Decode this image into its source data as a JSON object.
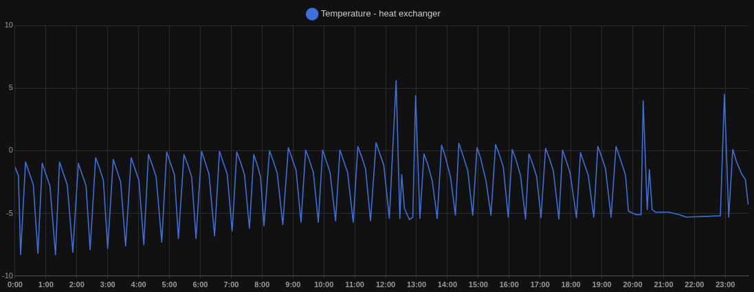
{
  "chart_data": {
    "type": "line",
    "legend": "top",
    "grid": true,
    "marker": "none",
    "line_style": "solid",
    "xlim": [
      0,
      23.75
    ],
    "ylim": [
      -10,
      10
    ],
    "yticks": [
      -10,
      -5,
      0,
      5,
      10
    ],
    "xticks": [
      {
        "value": 0,
        "label": "0:00"
      },
      {
        "value": 1,
        "label": "1:00"
      },
      {
        "value": 2,
        "label": "2:00"
      },
      {
        "value": 3,
        "label": "3:00"
      },
      {
        "value": 4,
        "label": "4:00"
      },
      {
        "value": 5,
        "label": "5:00"
      },
      {
        "value": 6,
        "label": "6:00"
      },
      {
        "value": 7,
        "label": "7:00"
      },
      {
        "value": 8,
        "label": "8:00"
      },
      {
        "value": 9,
        "label": "9:00"
      },
      {
        "value": 10,
        "label": "10:00"
      },
      {
        "value": 11,
        "label": "11:00"
      },
      {
        "value": 12,
        "label": "12:00"
      },
      {
        "value": 13,
        "label": "13:00"
      },
      {
        "value": 14,
        "label": "14:00"
      },
      {
        "value": 15,
        "label": "15:00"
      },
      {
        "value": 16,
        "label": "16:00"
      },
      {
        "value": 17,
        "label": "17:00"
      },
      {
        "value": 18,
        "label": "18:00"
      },
      {
        "value": 19,
        "label": "19:00"
      },
      {
        "value": 20,
        "label": "20:00"
      },
      {
        "value": 21,
        "label": "21:00"
      },
      {
        "value": 22,
        "label": "22:00"
      },
      {
        "value": 23,
        "label": "23:00"
      }
    ],
    "series": [
      {
        "name": "Temperature - heat exchanger",
        "color": "#3f6fd8",
        "x": [
          0.0,
          0.11,
          0.18,
          0.34,
          0.45,
          0.59,
          0.74,
          0.88,
          0.99,
          1.13,
          1.31,
          1.44,
          1.55,
          1.69,
          1.87,
          2.05,
          2.16,
          2.3,
          2.43,
          2.61,
          2.73,
          2.86,
          3.0,
          3.18,
          3.29,
          3.42,
          3.58,
          3.76,
          3.87,
          4.01,
          4.17,
          4.32,
          4.44,
          4.57,
          4.75,
          4.91,
          5.02,
          5.16,
          5.29,
          5.47,
          5.59,
          5.72,
          5.86,
          6.04,
          6.15,
          6.28,
          6.46,
          6.62,
          6.73,
          6.87,
          7.03,
          7.18,
          7.3,
          7.43,
          7.59,
          7.73,
          7.84,
          7.95,
          8.06,
          8.24,
          8.36,
          8.49,
          8.67,
          8.85,
          8.96,
          9.1,
          9.26,
          9.41,
          9.53,
          9.66,
          9.82,
          9.96,
          10.07,
          10.2,
          10.38,
          10.52,
          10.63,
          10.77,
          10.95,
          11.1,
          11.22,
          11.35,
          11.51,
          11.69,
          11.8,
          11.94,
          12.12,
          12.34,
          12.46,
          12.52,
          12.61,
          12.77,
          12.88,
          12.97,
          13.11,
          13.24,
          13.36,
          13.51,
          13.67,
          13.81,
          13.92,
          14.1,
          14.26,
          14.37,
          14.48,
          14.66,
          14.82,
          14.96,
          15.07,
          15.25,
          15.41,
          15.56,
          15.68,
          15.81,
          15.97,
          16.1,
          16.22,
          16.37,
          16.53,
          16.64,
          16.76,
          16.89,
          17.03,
          17.18,
          17.3,
          17.43,
          17.61,
          17.73,
          17.84,
          17.97,
          18.18,
          18.31,
          18.42,
          18.56,
          18.74,
          18.87,
          18.99,
          19.12,
          19.3,
          19.46,
          19.57,
          19.71,
          19.77,
          19.86,
          19.93,
          20.11,
          20.19,
          20.27,
          20.34,
          20.47,
          20.54,
          20.63,
          20.74,
          21.17,
          21.51,
          21.73,
          22.73,
          22.84,
          22.97,
          23.11,
          23.24,
          23.38,
          23.54,
          23.65,
          23.74
        ],
        "values": [
          -1.3,
          -2.0,
          -8.3,
          -0.9,
          -1.7,
          -2.7,
          -8.2,
          -1.0,
          -1.8,
          -2.8,
          -8.3,
          -0.9,
          -1.7,
          -2.7,
          -8.1,
          -1.0,
          -1.8,
          -2.8,
          -7.9,
          -0.55,
          -1.35,
          -2.35,
          -7.8,
          -0.7,
          -1.5,
          -2.5,
          -7.6,
          -0.55,
          -1.35,
          -2.35,
          -7.5,
          -0.3,
          -1.1,
          -2.1,
          -7.3,
          -0.1,
          -0.9,
          -1.9,
          -7.0,
          -0.3,
          -1.1,
          -2.1,
          -7.0,
          -0.05,
          -0.85,
          -1.85,
          -6.8,
          -0.05,
          -0.85,
          -1.85,
          -6.4,
          -0.1,
          -0.9,
          -1.9,
          -6.2,
          -0.3,
          -1.1,
          -2.1,
          -6.0,
          0.0,
          -0.8,
          -1.8,
          -5.9,
          0.25,
          -0.55,
          -1.55,
          -5.7,
          0.05,
          -0.75,
          -1.75,
          -5.7,
          0.05,
          -0.75,
          -1.75,
          -5.6,
          0.05,
          -0.75,
          -1.75,
          -5.7,
          0.35,
          -0.45,
          -1.45,
          -5.6,
          0.65,
          -0.15,
          -1.15,
          -5.4,
          5.6,
          -5.4,
          -1.9,
          -4.6,
          -5.5,
          -5.3,
          4.4,
          -5.4,
          -0.25,
          -1.05,
          -2.4,
          -5.4,
          0.45,
          -0.35,
          -2.1,
          -5.15,
          0.6,
          -0.2,
          -1.6,
          -5.15,
          0.25,
          -0.55,
          -2.4,
          -5.15,
          0.5,
          -0.3,
          -1.3,
          -5.3,
          0.1,
          -0.7,
          -2.0,
          -5.45,
          -0.25,
          -1.05,
          -2.05,
          -5.35,
          0.2,
          -0.6,
          -1.6,
          -5.45,
          0.05,
          -0.75,
          -1.75,
          -5.35,
          -0.15,
          -0.95,
          -1.95,
          -5.3,
          0.35,
          -0.45,
          -1.45,
          -5.3,
          0.35,
          -0.45,
          -1.5,
          -2.0,
          -4.8,
          -4.9,
          -5.1,
          -5.1,
          -5.1,
          4.0,
          -4.7,
          -1.5,
          -4.7,
          -4.9,
          -4.9,
          -5.1,
          -5.3,
          -5.2,
          -5.2,
          4.5,
          -5.3,
          0.1,
          -1.0,
          -1.9,
          -2.3,
          -4.3
        ]
      }
    ]
  }
}
